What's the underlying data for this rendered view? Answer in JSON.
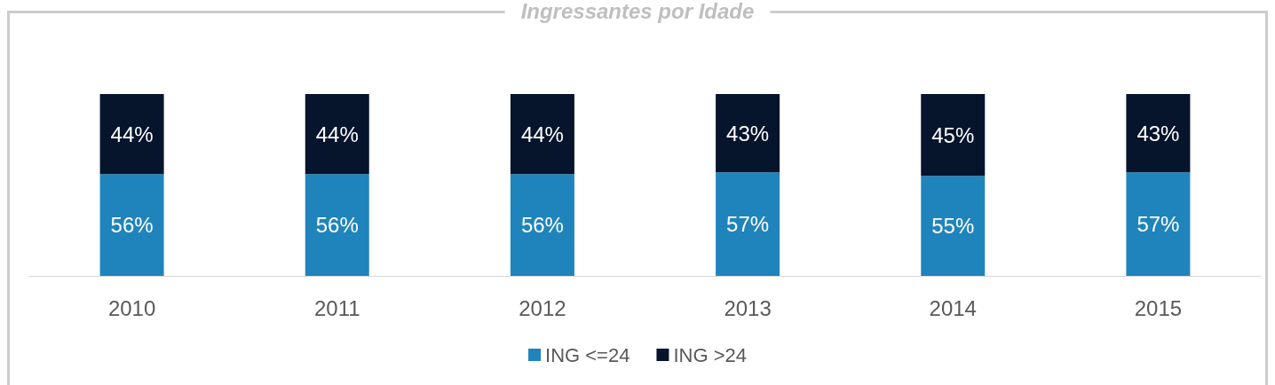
{
  "chart_data": {
    "type": "bar",
    "title": "Ingressantes por Idade",
    "categories": [
      "2010",
      "2011",
      "2012",
      "2013",
      "2014",
      "2015"
    ],
    "stacked": true,
    "legend": "bottom",
    "series": [
      {
        "name": "ING <=24",
        "color": "#2084bc",
        "values": [
          56,
          56,
          56,
          57,
          55,
          57
        ],
        "value_labels": [
          "56%",
          "56%",
          "56%",
          "57%",
          "55%",
          "57%"
        ]
      },
      {
        "name": "ING >24",
        "color": "#06142c",
        "values": [
          44,
          44,
          44,
          43,
          45,
          43
        ],
        "value_labels": [
          "44%",
          "44%",
          "44%",
          "43%",
          "45%",
          "43%"
        ]
      }
    ]
  }
}
